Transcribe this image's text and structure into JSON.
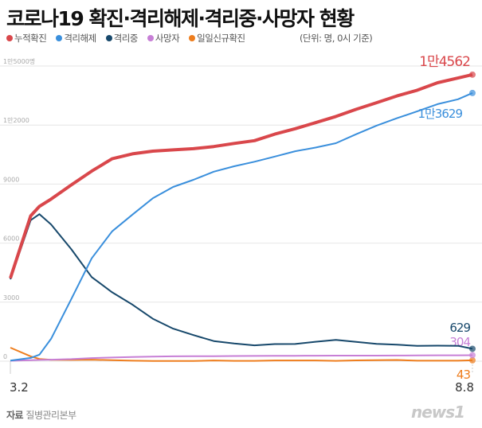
{
  "title": "코로나19 확진·격리해제·격리중·사망자 현황",
  "unit_note": "(단위: 명, 0시 기준)",
  "source_label": "자료",
  "source": "질병관리본부",
  "logo": "news1",
  "chart_data": {
    "type": "line",
    "title": "코로나19 확진·격리해제·격리중·사망자 현황",
    "ylim": [
      0,
      15000
    ],
    "yticks": [
      "0",
      "3000",
      "6000",
      "9000",
      "1만2000",
      "1만5000명"
    ],
    "ytick_values": [
      0,
      3000,
      6000,
      9000,
      12000,
      15000
    ],
    "xtick_labels": [
      "3.2",
      "8.8"
    ],
    "grid": true,
    "legend": "top-left",
    "x": [
      "2020-03-02",
      "2020-03-09",
      "2020-03-12",
      "2020-03-16",
      "2020-03-23",
      "2020-03-30",
      "2020-04-06",
      "2020-04-13",
      "2020-04-20",
      "2020-04-27",
      "2020-05-04",
      "2020-05-11",
      "2020-05-18",
      "2020-05-25",
      "2020-06-01",
      "2020-06-08",
      "2020-06-15",
      "2020-06-22",
      "2020-06-29",
      "2020-07-06",
      "2020-07-13",
      "2020-07-20",
      "2020-07-27",
      "2020-08-03",
      "2020-08-08"
    ],
    "series": [
      {
        "name": "누적확진",
        "color": "#d9474b",
        "end_label": "1만4562",
        "values": [
          4212,
          7382,
          7869,
          8236,
          8961,
          9661,
          10284,
          10537,
          10674,
          10738,
          10801,
          10909,
          11065,
          11206,
          11541,
          11814,
          12121,
          12438,
          12800,
          13137,
          13479,
          13771,
          14150,
          14389,
          14562
        ]
      },
      {
        "name": "격리해제",
        "color": "#3a8fdc",
        "end_label": "1만3629",
        "values": [
          30,
          166,
          333,
          1137,
          3166,
          5228,
          6598,
          7447,
          8277,
          8854,
          9218,
          9632,
          9904,
          10135,
          10398,
          10669,
          10856,
          11079,
          11537,
          11970,
          12348,
          12698,
          13064,
          13308,
          13629
        ]
      },
      {
        "name": "격리중",
        "color": "#17486b",
        "end_label": "629",
        "values": [
          4160,
          7165,
          7470,
          6950,
          5684,
          4275,
          3500,
          2873,
          2158,
          1654,
          1327,
          1021,
          898,
          804,
          871,
          872,
          985,
          1078,
          980,
          883,
          842,
          777,
          788,
          779,
          629
        ]
      },
      {
        "name": "사망자",
        "color": "#c77fd6",
        "end_label": "304",
        "values": [
          22,
          51,
          66,
          75,
          104,
          158,
          186,
          214,
          236,
          248,
          254,
          256,
          263,
          267,
          272,
          276,
          277,
          282,
          282,
          285,
          289,
          296,
          300,
          301,
          304
        ]
      },
      {
        "name": "일일신규확진",
        "color": "#ee7d1d",
        "end_label": "43",
        "values": [
          686,
          248,
          114,
          74,
          64,
          78,
          47,
          25,
          13,
          10,
          8,
          35,
          15,
          16,
          35,
          38,
          37,
          17,
          42,
          48,
          62,
          26,
          25,
          23,
          43
        ]
      }
    ]
  }
}
